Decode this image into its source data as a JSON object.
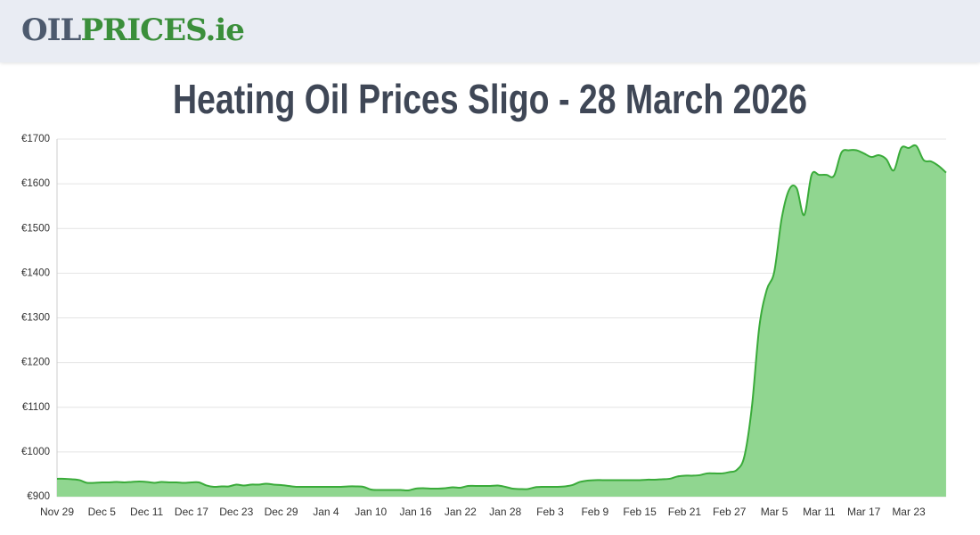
{
  "header": {
    "logo": [
      "OIL",
      "PRICES.ie"
    ]
  },
  "chart_data": {
    "type": "area",
    "title": "Heating Oil Prices Sligo - 28 March 2026",
    "categories": [
      "Nov 29",
      null,
      null,
      null,
      null,
      null,
      "Dec 5",
      null,
      null,
      null,
      null,
      null,
      "Dec 11",
      null,
      null,
      null,
      null,
      null,
      "Dec 17",
      null,
      null,
      null,
      null,
      null,
      "Dec 23",
      null,
      null,
      null,
      null,
      null,
      "Dec 29",
      null,
      null,
      null,
      null,
      null,
      "Jan 4",
      null,
      null,
      null,
      null,
      null,
      "Jan 10",
      null,
      null,
      null,
      null,
      null,
      "Jan 16",
      null,
      null,
      null,
      null,
      null,
      "Jan 22",
      null,
      null,
      null,
      null,
      null,
      "Jan 28",
      null,
      null,
      null,
      null,
      null,
      "Feb 3",
      null,
      null,
      null,
      null,
      null,
      "Feb 9",
      null,
      null,
      null,
      null,
      null,
      "Feb 15",
      null,
      null,
      null,
      null,
      null,
      "Feb 21",
      null,
      null,
      null,
      null,
      null,
      "Feb 27",
      null,
      null,
      null,
      null,
      null,
      "Mar 5",
      null,
      null,
      null,
      null,
      null,
      "Mar 11",
      null,
      null,
      null,
      null,
      null,
      "Mar 17",
      null,
      null,
      null,
      null,
      null,
      "Mar 23",
      null,
      null,
      null,
      null,
      null
    ],
    "values": [
      940,
      940,
      939,
      937,
      931,
      931,
      932,
      932,
      933,
      932,
      933,
      934,
      933,
      931,
      933,
      932,
      932,
      931,
      932,
      932,
      925,
      922,
      923,
      923,
      927,
      925,
      927,
      927,
      929,
      927,
      926,
      924,
      922,
      922,
      922,
      922,
      922,
      922,
      922,
      923,
      923,
      922,
      916,
      915,
      915,
      915,
      915,
      914,
      918,
      919,
      918,
      918,
      919,
      921,
      920,
      924,
      924,
      924,
      924,
      925,
      922,
      918,
      917,
      917,
      921,
      922,
      922,
      922,
      923,
      926,
      933,
      936,
      937,
      937,
      937,
      937,
      937,
      937,
      937,
      938,
      938,
      939,
      940,
      945,
      947,
      947,
      948,
      952,
      952,
      952,
      955,
      960,
      990,
      1100,
      1280,
      1363,
      1403,
      1523,
      1587,
      1590,
      1530,
      1620,
      1620,
      1620,
      1618,
      1670,
      1675,
      1675,
      1668,
      1660,
      1664,
      1655,
      1630,
      1680,
      1680,
      1685,
      1653,
      1650,
      1640,
      1625
    ],
    "color": "#3aab3a",
    "fill": "#90d690",
    "ylim": [
      900,
      1700
    ],
    "yticks": [
      {
        "value": 900,
        "label": "€900"
      },
      {
        "value": 1000,
        "label": "€1000"
      },
      {
        "value": 1100,
        "label": "€1100"
      },
      {
        "value": 1200,
        "label": "€1200"
      },
      {
        "value": 1300,
        "label": "€1300"
      },
      {
        "value": 1400,
        "label": "€1400"
      },
      {
        "value": 1500,
        "label": "€1500"
      },
      {
        "value": 1600,
        "label": "€1600"
      },
      {
        "value": 1700,
        "label": "€1700"
      }
    ],
    "grid": true
  }
}
